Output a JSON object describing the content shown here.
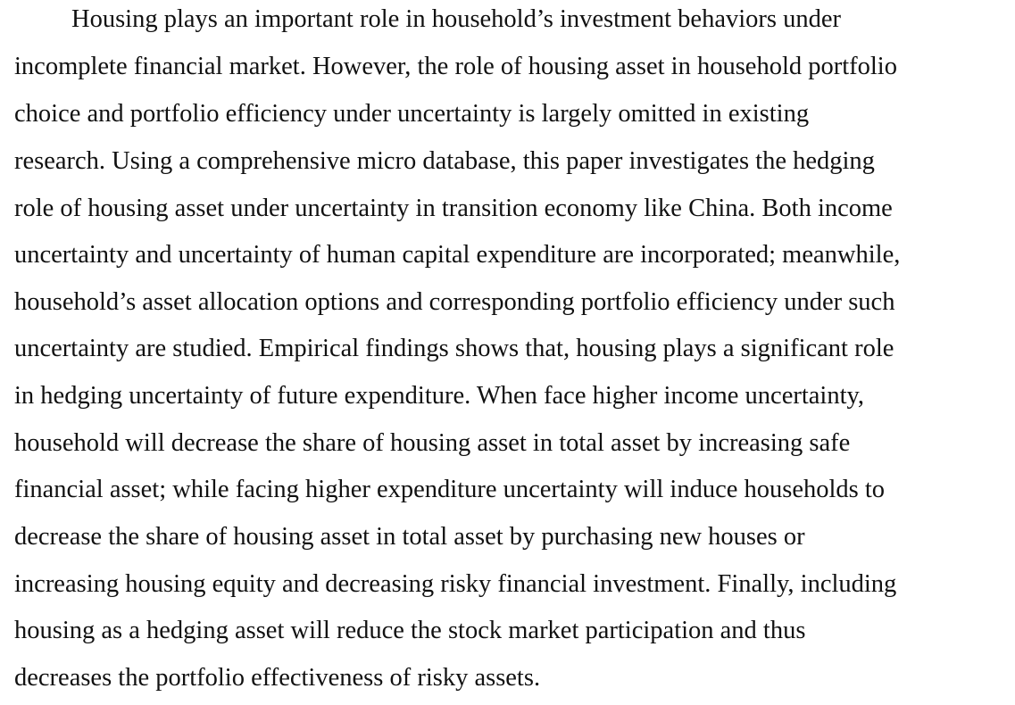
{
  "abstract": {
    "lines": [
      "Housing plays an important role in household’s investment behaviors under",
      "incomplete financial market. However, the role of housing asset in household portfolio",
      "choice and portfolio efficiency under uncertainty is largely omitted in existing",
      "research. Using a comprehensive micro database, this paper investigates the hedging",
      "role of housing asset under uncertainty in transition economy like China. Both income",
      "uncertainty and uncertainty of human capital expenditure are incorporated; meanwhile,",
      "household’s asset allocation options and corresponding portfolio efficiency under such",
      "uncertainty are studied. Empirical findings shows that, housing plays a significant role",
      "in hedging uncertainty of future expenditure. When face higher income uncertainty,",
      "household will decrease the share of housing asset in total asset by increasing safe",
      "financial asset; while facing higher expenditure uncertainty will induce households to",
      "decrease the share of housing asset in total asset by purchasing new houses or",
      "increasing housing equity and decreasing risky financial investment. Finally, including",
      "housing as a hedging asset will reduce the stock market participation and thus",
      "decreases the portfolio effectiveness of risky assets."
    ]
  }
}
